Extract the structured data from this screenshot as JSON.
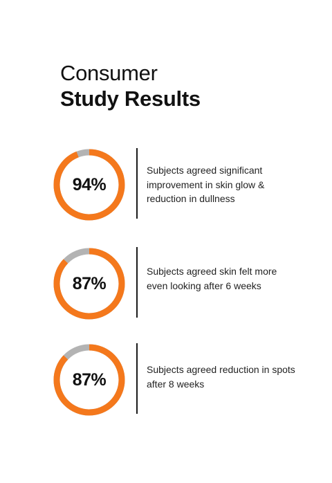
{
  "title": {
    "line1": "Consumer",
    "line2": "Study Results"
  },
  "colors": {
    "accent": "#F4781C",
    "track": "#B3B3B3",
    "text": "#111111",
    "divider": "#1A1A1A"
  },
  "chart_data": {
    "type": "pie",
    "title": "Consumer Study Results",
    "series": [
      {
        "label": "94%",
        "value": 94,
        "description": "Subjects agreed significant improvement in skin glow & reduction in dullness"
      },
      {
        "label": "87%",
        "value": 87,
        "description": "Subjects agreed skin felt more even looking after 6 weeks"
      },
      {
        "label": "87%",
        "value": 87,
        "description": "Subjects agreed reduction in spots after 8 weeks"
      }
    ]
  }
}
